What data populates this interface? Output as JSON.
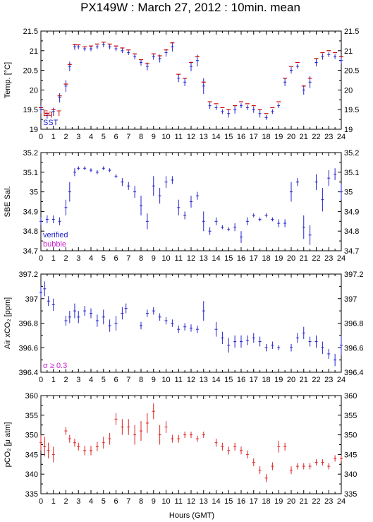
{
  "chart_data": {
    "title": "PX149W : March 27, 2012 : 10min. mean",
    "xlabel": "Hours (GMT)",
    "x_range": [
      0,
      24
    ],
    "x_ticks": [
      0,
      1,
      2,
      3,
      4,
      5,
      6,
      7,
      8,
      9,
      10,
      11,
      12,
      13,
      14,
      15,
      16,
      17,
      18,
      19,
      20,
      21,
      22,
      23,
      24
    ],
    "x_tick_labels": [
      "0",
      "1",
      "2",
      "3",
      "4",
      "5",
      "6",
      "7",
      "8",
      "9",
      "10",
      "11",
      "12",
      "13",
      "14",
      "15",
      "16",
      "17",
      "18",
      "19",
      "20",
      "21",
      "22",
      "23",
      "24"
    ],
    "panels": [
      {
        "type": "scatter",
        "ylabel": "Temp. [°C]",
        "ylim": [
          19,
          21.5
        ],
        "y_ticks": [
          19,
          19.5,
          20,
          20.5,
          21,
          21.5
        ],
        "y_tick_labels": [
          "19",
          "19.5",
          "20",
          "20.5",
          "21",
          "21.5"
        ],
        "legend": [
          {
            "label": "Eq. T",
            "color": "#cc0000"
          },
          {
            "label": "SST",
            "color": "#2222cc"
          }
        ],
        "series": [
          {
            "name": "SST",
            "color": "#2222cc",
            "error_bars": true,
            "x": [
              0,
              0.5,
              1,
              1.5,
              2,
              2.3,
              2.7,
              3,
              3.5,
              4,
              4.5,
              5,
              5.5,
              6,
              6.5,
              7,
              7.5,
              8,
              8.5,
              9,
              9.5,
              10,
              10.5,
              11,
              11.5,
              12,
              12.5,
              13,
              13.5,
              14,
              14.5,
              15,
              15.5,
              16,
              16.5,
              17,
              17.5,
              18,
              18.5,
              19,
              19.5,
              20,
              20.5,
              21,
              21.5,
              22,
              22.5,
              23,
              23.5,
              24
            ],
            "y": [
              19.5,
              19.35,
              19.45,
              19.8,
              20.1,
              20.6,
              21.1,
              21.1,
              21.05,
              21.05,
              21.1,
              21.15,
              21.1,
              21.05,
              21.0,
              20.95,
              20.85,
              20.7,
              20.6,
              20.85,
              20.8,
              20.95,
              21.1,
              20.3,
              20.2,
              20.6,
              20.75,
              20.1,
              19.6,
              19.55,
              19.45,
              19.4,
              19.5,
              19.6,
              19.55,
              19.5,
              19.4,
              19.3,
              19.45,
              19.6,
              20.2,
              20.5,
              20.6,
              20.0,
              20.2,
              20.7,
              20.85,
              20.9,
              20.85,
              20.75
            ],
            "err": [
              0.1,
              0.08,
              0.1,
              0.12,
              0.15,
              0.12,
              0.08,
              0.06,
              0.06,
              0.06,
              0.05,
              0.06,
              0.06,
              0.06,
              0.06,
              0.06,
              0.07,
              0.08,
              0.1,
              0.08,
              0.1,
              0.1,
              0.12,
              0.1,
              0.1,
              0.12,
              0.15,
              0.2,
              0.08,
              0.06,
              0.06,
              0.1,
              0.1,
              0.06,
              0.06,
              0.08,
              0.1,
              0.06,
              0.06,
              0.06,
              0.1,
              0.08,
              0.06,
              0.12,
              0.15,
              0.1,
              0.08,
              0.06,
              0.06,
              0.08
            ]
          },
          {
            "name": "Eq. T",
            "color": "#cc0000",
            "error_bars": false,
            "x": [
              0,
              0.5,
              1,
              1.5,
              2,
              2.3,
              2.7,
              3,
              3.5,
              4,
              4.5,
              5,
              5.5,
              6,
              6.5,
              7,
              7.5,
              8,
              8.5,
              9,
              9.5,
              10,
              10.5,
              11,
              11.5,
              12,
              12.5,
              13,
              13.5,
              14,
              14.5,
              15,
              15.5,
              16,
              16.5,
              17,
              17.5,
              18,
              18.5,
              19,
              19.5,
              20,
              20.5,
              21,
              21.5,
              22,
              22.5,
              23,
              23.5,
              24
            ],
            "y": [
              19.55,
              19.4,
              19.5,
              19.85,
              20.15,
              20.65,
              21.15,
              21.15,
              21.1,
              21.12,
              21.17,
              21.22,
              21.17,
              21.12,
              21.07,
              21.02,
              20.92,
              20.77,
              20.67,
              20.92,
              20.87,
              21.02,
              21.2,
              20.4,
              20.3,
              20.7,
              20.85,
              20.2,
              19.7,
              19.65,
              19.55,
              19.5,
              19.6,
              19.7,
              19.65,
              19.6,
              19.5,
              19.4,
              19.55,
              19.7,
              20.3,
              20.6,
              20.7,
              20.1,
              20.3,
              20.8,
              20.95,
              21.0,
              20.95,
              20.85
            ]
          }
        ]
      },
      {
        "type": "scatter",
        "ylabel": "SBE Sal.",
        "ylim": [
          34.7,
          35.2
        ],
        "y_ticks": [
          34.7,
          34.8,
          34.9,
          35,
          35.1,
          35.2
        ],
        "y_tick_labels": [
          "34.7",
          "34.8",
          "34.9",
          "35",
          "35.1",
          "35.2"
        ],
        "legend": [
          {
            "label": "verified",
            "color": "#2222cc"
          },
          {
            "label": "bubble",
            "color": "#cc22cc"
          }
        ],
        "series": [
          {
            "name": "verified",
            "color": "#2222cc",
            "error_bars": true,
            "x": [
              0,
              0.5,
              1,
              1.5,
              2,
              2.3,
              2.7,
              3,
              3.5,
              4,
              4.5,
              5,
              5.5,
              6,
              6.5,
              7,
              7.5,
              8,
              8.5,
              9,
              9.5,
              10,
              10.5,
              11,
              11.5,
              12,
              12.5,
              13,
              13.5,
              14,
              14.5,
              15,
              15.5,
              16,
              16.5,
              17,
              17.5,
              18,
              18.5,
              19,
              19.5,
              20,
              20.5,
              21,
              21.5,
              22,
              22.5,
              23,
              23.5,
              24
            ],
            "y": [
              34.85,
              34.86,
              34.86,
              34.85,
              34.92,
              35.0,
              35.1,
              35.12,
              35.12,
              35.11,
              35.1,
              35.12,
              35.11,
              35.08,
              35.05,
              35.03,
              35.0,
              34.93,
              34.85,
              35.03,
              34.98,
              35.05,
              35.06,
              34.92,
              34.88,
              34.95,
              34.98,
              34.85,
              34.8,
              34.85,
              34.82,
              34.81,
              34.82,
              34.77,
              34.85,
              34.88,
              34.86,
              34.88,
              34.86,
              34.84,
              34.84,
              35.0,
              35.05,
              34.82,
              34.78,
              35.05,
              34.96,
              35.07,
              35.09,
              35.0
            ],
            "err": [
              0.02,
              0.02,
              0.02,
              0.02,
              0.04,
              0.05,
              0.02,
              0.01,
              0.01,
              0.01,
              0.01,
              0.01,
              0.01,
              0.01,
              0.02,
              0.02,
              0.03,
              0.05,
              0.04,
              0.05,
              0.04,
              0.03,
              0.02,
              0.04,
              0.02,
              0.03,
              0.02,
              0.05,
              0.02,
              0.02,
              0.01,
              0.01,
              0.02,
              0.03,
              0.02,
              0.01,
              0.01,
              0.01,
              0.01,
              0.02,
              0.02,
              0.05,
              0.02,
              0.06,
              0.05,
              0.04,
              0.06,
              0.04,
              0.03,
              0.04
            ]
          }
        ]
      },
      {
        "type": "scatter",
        "ylabel": "Air xCO₂ [ppm]",
        "ylim": [
          396.4,
          397.2
        ],
        "y_ticks": [
          396.4,
          396.6,
          396.8,
          397,
          397.2
        ],
        "y_tick_labels": [
          "396.4",
          "396.6",
          "396.8",
          "397",
          "397.2"
        ],
        "legend": [
          {
            "label": "σ ≥ 0.3",
            "color": "#cc22cc"
          }
        ],
        "series": [
          {
            "name": "Air xCO2",
            "color": "#2222cc",
            "error_bars": true,
            "x": [
              0,
              0.3,
              0.6,
              1,
              2,
              2.3,
              2.7,
              3,
              3.5,
              4,
              4.5,
              5,
              5.5,
              6,
              6.5,
              6.8,
              8,
              8.5,
              9,
              9.5,
              10,
              10.5,
              11,
              11.5,
              12,
              12.5,
              13,
              14,
              14.5,
              15,
              15.5,
              16,
              16.5,
              17,
              17.5,
              18,
              18.5,
              19,
              20,
              20.5,
              21,
              21.5,
              22,
              22.5,
              23,
              23.5,
              24
            ],
            "y": [
              397.05,
              397.08,
              396.98,
              396.95,
              396.82,
              396.85,
              396.9,
              396.85,
              396.9,
              396.88,
              396.82,
              396.85,
              396.78,
              396.8,
              396.88,
              396.92,
              396.78,
              396.88,
              396.9,
              396.85,
              396.82,
              396.8,
              396.75,
              396.77,
              396.76,
              396.75,
              396.9,
              396.75,
              396.68,
              396.62,
              396.65,
              396.65,
              396.66,
              396.68,
              396.65,
              396.6,
              396.62,
              396.6,
              396.6,
              396.68,
              396.72,
              396.65,
              396.65,
              396.6,
              396.55,
              396.5,
              396.62
            ],
            "err": [
              0.05,
              0.06,
              0.04,
              0.05,
              0.04,
              0.05,
              0.06,
              0.05,
              0.04,
              0.04,
              0.05,
              0.06,
              0.05,
              0.06,
              0.05,
              0.04,
              0.03,
              0.03,
              0.03,
              0.03,
              0.03,
              0.03,
              0.03,
              0.03,
              0.03,
              0.03,
              0.08,
              0.06,
              0.05,
              0.06,
              0.05,
              0.05,
              0.04,
              0.04,
              0.04,
              0.03,
              0.03,
              0.02,
              0.03,
              0.04,
              0.05,
              0.04,
              0.05,
              0.05,
              0.04,
              0.05,
              0.08
            ]
          }
        ]
      },
      {
        "type": "scatter",
        "ylabel": "pCO₂ [μ atm]",
        "ylim": [
          335,
          360
        ],
        "y_ticks": [
          335,
          340,
          345,
          350,
          355,
          360
        ],
        "y_tick_labels": [
          "335",
          "340",
          "345",
          "350",
          "355",
          "360"
        ],
        "legend": [],
        "series": [
          {
            "name": "pCO2",
            "color": "#dd2222",
            "error_bars": true,
            "x": [
              0,
              0.3,
              0.6,
              1,
              2,
              2.3,
              2.7,
              3,
              3.5,
              4,
              4.5,
              5,
              5.5,
              6,
              6.5,
              7,
              7.5,
              8,
              8.5,
              9,
              9.5,
              10,
              10.5,
              11,
              11.5,
              12,
              12.5,
              13,
              14,
              14.5,
              15,
              15.5,
              16,
              16.5,
              17,
              17.5,
              18,
              18.5,
              19,
              19.5,
              20,
              20.5,
              21,
              21.5,
              22,
              22.5,
              23,
              23.5,
              24
            ],
            "y": [
              348,
              347,
              346,
              345,
              351,
              349,
              348,
              347,
              346,
              346,
              347,
              348,
              349,
              354,
              352,
              352,
              350,
              351,
              353,
              356,
              350,
              352,
              349,
              349,
              350,
              350,
              349,
              350,
              348,
              347,
              346,
              347,
              346,
              345,
              343,
              341,
              339,
              342,
              347,
              347,
              341,
              342,
              342,
              342,
              343,
              343,
              342,
              344,
              344
            ],
            "err": [
              2,
              2.5,
              2,
              2,
              1,
              1,
              1,
              1,
              1.2,
              1.2,
              1.2,
              1.5,
              1.5,
              1.5,
              2,
              2,
              2.5,
              2.5,
              2.5,
              2,
              2.5,
              1.5,
              1,
              1,
              0.8,
              0.8,
              0.8,
              0.8,
              1,
              1,
              1,
              1,
              1,
              1,
              1,
              1,
              1,
              1,
              1.5,
              1,
              1,
              0.8,
              0.8,
              0.8,
              0.8,
              0.8,
              0.8,
              0.8,
              0.8
            ]
          }
        ]
      }
    ]
  }
}
